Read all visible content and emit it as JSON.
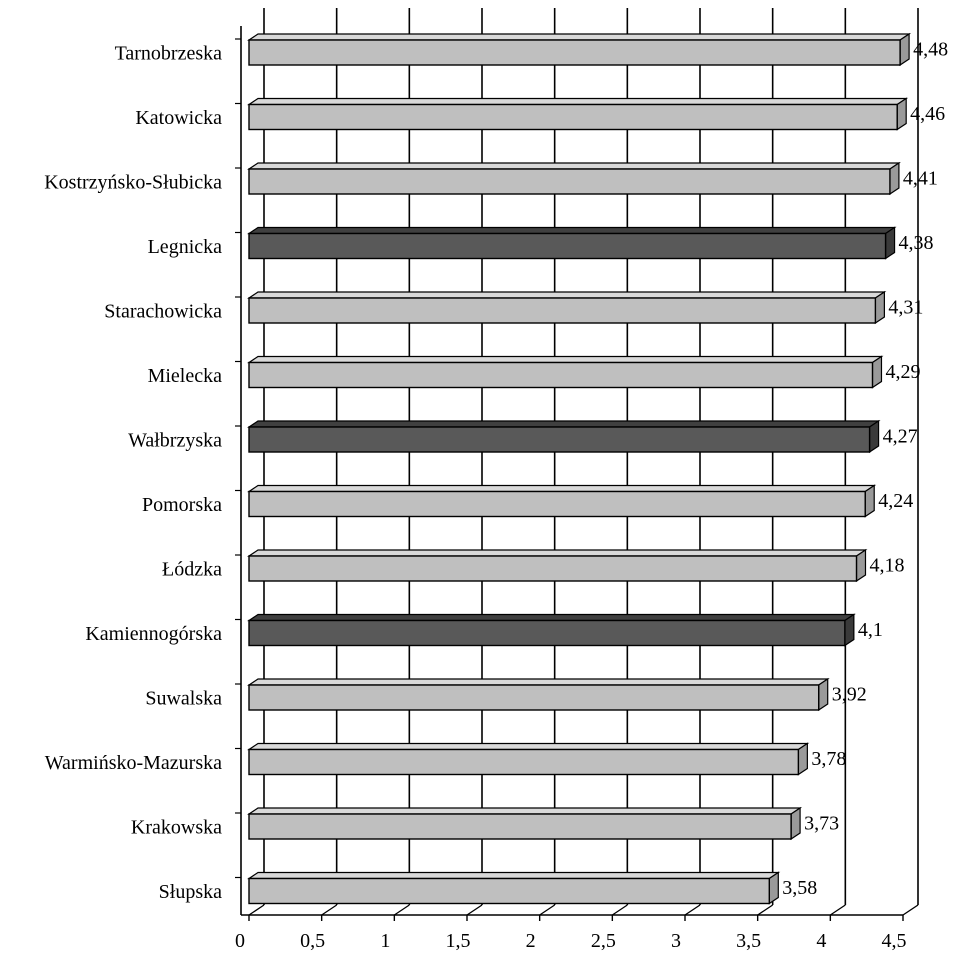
{
  "chart_data": {
    "type": "bar",
    "orientation": "horizontal",
    "style": "3d",
    "title": "",
    "xlabel": "",
    "ylabel": "",
    "xlim": [
      0,
      4.5
    ],
    "x_ticks": [
      0,
      0.5,
      1,
      1.5,
      2,
      2.5,
      3,
      3.5,
      4,
      4.5
    ],
    "x_tick_labels": [
      "0",
      "0,5",
      "1",
      "1,5",
      "2",
      "2,5",
      "3",
      "3,5",
      "4",
      "4,5"
    ],
    "grid": "vertical",
    "legend": "none",
    "categories": [
      "Tarnobrzeska",
      "Katowicka",
      "Kostrzyńsko-Słubicka",
      "Legnicka",
      "Starachowicka",
      "Mielecka",
      "Wałbrzyska",
      "Pomorska",
      "Łódzka",
      "Kamiennogórska",
      "Suwalska",
      "Warmińsko-Mazurska",
      "Krakowska",
      "Słupska"
    ],
    "values": [
      4.48,
      4.46,
      4.41,
      4.38,
      4.31,
      4.29,
      4.27,
      4.24,
      4.18,
      4.1,
      3.92,
      3.78,
      3.73,
      3.58
    ],
    "value_labels": [
      "4,48",
      "4,46",
      "4,41",
      "4,38",
      "4,31",
      "4,29",
      "4,27",
      "4,24",
      "4,18",
      "4,1",
      "3,92",
      "3,78",
      "3,73",
      "3,58"
    ],
    "highlighted": [
      false,
      false,
      false,
      true,
      false,
      false,
      true,
      false,
      false,
      true,
      false,
      false,
      false,
      false
    ],
    "colors": {
      "bar": "#bfbfbf",
      "bar_side": "#9a9a9a",
      "bar_top": "#d9d9d9",
      "highlight": "#595959",
      "highlight_side": "#3a3a3a",
      "highlight_top": "#404040",
      "axis": "#000000",
      "grid": "#000000"
    }
  }
}
